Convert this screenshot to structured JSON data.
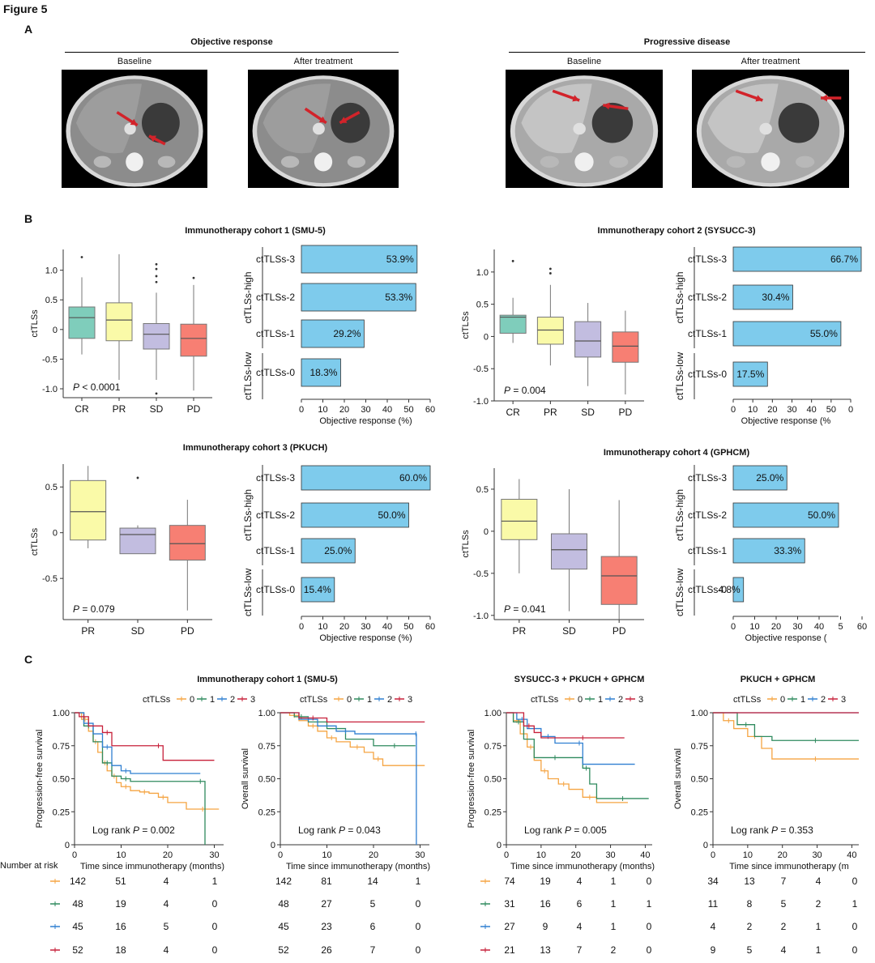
{
  "figure_title": "Figure 5",
  "panel_labels": {
    "a": "A",
    "b": "B",
    "c": "C"
  },
  "panel_a": {
    "groups": [
      {
        "title": "Objective response",
        "images": [
          "Baseline",
          "After treatment"
        ]
      },
      {
        "title": "Progressive disease",
        "images": [
          "Baseline",
          "After treatment"
        ]
      }
    ]
  },
  "boxplot_colors": {
    "CR": "#7fcdbb",
    "PR": "#fafaa8",
    "SD": "#c2bde0",
    "PD": "#f77f73"
  },
  "bar_color": "#7ecbec",
  "chart_data": [
    {
      "type": "box",
      "title": "Immunotherapy cohort 1 (SMU-5)",
      "ylabel": "ctTLSs",
      "categories": [
        "CR",
        "PR",
        "SD",
        "PD"
      ],
      "ylim": [
        -1.15,
        1.35
      ],
      "yticks": [
        "1.0",
        "0.5",
        "0",
        "-0.5",
        "-1.0"
      ],
      "stats": [
        {
          "q1": -0.15,
          "median": 0.2,
          "q3": 0.38,
          "wlo": -0.42,
          "whi": 0.88,
          "outliers": [
            1.22
          ]
        },
        {
          "q1": -0.19,
          "median": 0.16,
          "q3": 0.45,
          "wlo": -0.85,
          "whi": 1.27,
          "outliers": []
        },
        {
          "q1": -0.33,
          "median": -0.08,
          "q3": 0.1,
          "wlo": -0.85,
          "whi": 0.62,
          "outliers": [
            0.8,
            0.9,
            1.02,
            1.1,
            -1.08
          ]
        },
        {
          "q1": -0.45,
          "median": -0.15,
          "q3": 0.09,
          "wlo": -1.03,
          "whi": 0.75,
          "outliers": [
            0.87
          ]
        }
      ],
      "annotation": "P < 0.0001"
    },
    {
      "type": "bar",
      "xlabel": "Objective response (%)",
      "categories": [
        "ctTLSs-3",
        "ctTLSs-2",
        "ctTLSs-1",
        "ctTLSs-0"
      ],
      "values": [
        53.9,
        53.3,
        29.2,
        18.3
      ],
      "value_labels": [
        "53.9%",
        "53.3%",
        "29.2%",
        "18.3%"
      ],
      "groups": [
        "ctTLSs-high",
        "ctTLSs-low"
      ],
      "xlim": [
        0,
        60
      ],
      "xticks": [
        "0",
        "10",
        "20",
        "30",
        "40",
        "50",
        "60"
      ]
    },
    {
      "type": "box",
      "title": "Immunotherapy cohort 2 (SYSUCC-3)",
      "ylabel": "ctTLSs",
      "categories": [
        "CR",
        "PR",
        "SD",
        "PD"
      ],
      "ylim": [
        -1.0,
        1.35
      ],
      "yticks": [
        "1.0",
        "0.5",
        "0",
        "-0.5",
        "-1.0"
      ],
      "stats": [
        {
          "q1": 0.05,
          "median": 0.3,
          "q3": 0.33,
          "wlo": -0.1,
          "whi": 0.6,
          "outliers": [
            1.17
          ]
        },
        {
          "q1": -0.12,
          "median": 0.1,
          "q3": 0.3,
          "wlo": -0.45,
          "whi": 0.8,
          "outliers": [
            1.05,
            0.98
          ]
        },
        {
          "q1": -0.32,
          "median": -0.07,
          "q3": 0.23,
          "wlo": -0.77,
          "whi": 0.52,
          "outliers": []
        },
        {
          "q1": -0.4,
          "median": -0.15,
          "q3": 0.07,
          "wlo": -0.9,
          "whi": 0.4,
          "outliers": []
        }
      ],
      "annotation": "P = 0.004"
    },
    {
      "type": "bar",
      "xlabel": "Objective response (%",
      "categories": [
        "ctTLSs-3",
        "ctTLSs-2",
        "ctTLSs-1",
        "ctTLSs-0"
      ],
      "values": [
        66.7,
        30.4,
        55.0,
        17.5
      ],
      "value_labels": [
        "66.7%",
        "30.4%",
        "55.0%",
        "17.5%"
      ],
      "groups": [
        "ctTLSs-high",
        "ctTLSs-low"
      ],
      "xlim": [
        0,
        60
      ],
      "xticks": [
        "0",
        "10",
        "20",
        "30",
        "40",
        "50",
        "0"
      ]
    },
    {
      "type": "box",
      "title": "Immunotherapy cohort 3 (PKUCH)",
      "ylabel": "ctTLSs",
      "categories": [
        "PR",
        "SD",
        "PD"
      ],
      "ylim": [
        -0.95,
        0.75
      ],
      "yticks": [
        "0.5",
        "0",
        "-0.5"
      ],
      "stats": [
        {
          "q1": -0.08,
          "median": 0.23,
          "q3": 0.57,
          "wlo": -0.17,
          "whi": 0.73,
          "outliers": []
        },
        {
          "q1": -0.23,
          "median": -0.02,
          "q3": 0.05,
          "wlo": -0.23,
          "whi": 0.08,
          "outliers": [
            0.6
          ]
        },
        {
          "q1": -0.3,
          "median": -0.12,
          "q3": 0.08,
          "wlo": -0.85,
          "whi": 0.36,
          "outliers": []
        }
      ],
      "annotation": "P = 0.079"
    },
    {
      "type": "bar",
      "xlabel": "Objective response (%)",
      "categories": [
        "ctTLSs-3",
        "ctTLSs-2",
        "ctTLSs-1",
        "ctTLSs-0"
      ],
      "values": [
        60.0,
        50.0,
        25.0,
        15.4
      ],
      "value_labels": [
        "60.0%",
        "50.0%",
        "25.0%",
        "15.4%"
      ],
      "groups": [
        "ctTLSs-high",
        "ctTLSs-low"
      ],
      "xlim": [
        0,
        60
      ],
      "xticks": [
        "0",
        "10",
        "20",
        "30",
        "40",
        "50",
        "60"
      ]
    },
    {
      "type": "box",
      "title": "Immunotherapy cohort 4 (GPHCM)",
      "ylabel": "ctTLSs",
      "categories": [
        "PR",
        "SD",
        "PD"
      ],
      "ylim": [
        -1.05,
        0.75
      ],
      "yticks": [
        "0.5",
        "0",
        "-0.5",
        "-1.0"
      ],
      "stats": [
        {
          "q1": -0.1,
          "median": 0.12,
          "q3": 0.38,
          "wlo": -0.5,
          "whi": 0.62,
          "outliers": []
        },
        {
          "q1": -0.45,
          "median": -0.22,
          "q3": -0.03,
          "wlo": -0.95,
          "whi": 0.5,
          "outliers": []
        },
        {
          "q1": -0.87,
          "median": -0.53,
          "q3": -0.3,
          "wlo": -1.05,
          "whi": 0.37,
          "outliers": []
        }
      ],
      "annotation": "P = 0.041"
    },
    {
      "type": "bar",
      "xlabel": "Objective response (",
      "categories": [
        "ctTLSs-3",
        "ctTLSs-2",
        "ctTLSs-1",
        "ctTLSs-0"
      ],
      "values": [
        25.0,
        50.0,
        33.3,
        4.8
      ],
      "value_labels": [
        "25.0%",
        "50.0%",
        "33.3%",
        "4.8%"
      ],
      "groups": [
        "ctTLSs-high",
        "ctTLSs-low"
      ],
      "xlim": [
        0,
        60
      ],
      "xticks": [
        "0",
        "10",
        "20",
        "30",
        "40",
        "5",
        "60"
      ]
    },
    {
      "type": "line",
      "title": "Immunotherapy cohort 1 (SMU-5)",
      "legend_title": "ctTLSs",
      "legend_items": [
        "0",
        "1",
        "2",
        "3"
      ],
      "ylabel": "Progression-free survival",
      "xlabel": "Time since immunotherapy (months)",
      "xlim": [
        0,
        32
      ],
      "ylim": [
        0,
        1.0
      ],
      "xticks": [
        "0",
        "10",
        "20",
        "30"
      ],
      "yticks": [
        "1.00",
        "0.75",
        "0.50",
        "0.25",
        "0"
      ],
      "annotation": "Log rank P = 0.002",
      "series": [
        {
          "name": "0",
          "x": [
            0,
            1.5,
            3,
            4,
            5,
            6,
            7,
            8,
            9,
            10,
            12,
            14,
            16,
            18,
            20,
            24,
            31
          ],
          "y": [
            1.0,
            0.95,
            0.86,
            0.78,
            0.7,
            0.62,
            0.56,
            0.52,
            0.47,
            0.44,
            0.41,
            0.4,
            0.39,
            0.36,
            0.32,
            0.27,
            0.27
          ]
        },
        {
          "name": "1",
          "x": [
            0,
            2,
            4,
            6,
            8,
            10,
            12,
            26,
            28
          ],
          "y": [
            1.0,
            0.9,
            0.78,
            0.62,
            0.52,
            0.5,
            0.48,
            0.48,
            0.0
          ]
        },
        {
          "name": "2",
          "x": [
            0,
            2,
            4,
            6,
            8,
            10,
            12,
            27
          ],
          "y": [
            1.0,
            0.92,
            0.84,
            0.74,
            0.6,
            0.56,
            0.54,
            0.54
          ]
        },
        {
          "name": "3",
          "x": [
            0,
            1,
            3,
            6,
            8,
            17,
            19,
            30
          ],
          "y": [
            1.0,
            0.97,
            0.9,
            0.85,
            0.75,
            0.75,
            0.64,
            0.64
          ]
        }
      ]
    },
    {
      "type": "line",
      "legend_title": "ctTLSs",
      "legend_items": [
        "0",
        "1",
        "2",
        "3"
      ],
      "ylabel": "Overall survival",
      "xlabel": "Time since immunotherapy (months)",
      "xlim": [
        0,
        32
      ],
      "ylim": [
        0,
        1.0
      ],
      "xticks": [
        "0",
        "10",
        "20",
        "30"
      ],
      "yticks": [
        "1.00",
        "0.75",
        "0.50",
        "0.25",
        "0"
      ],
      "annotation": "Log rank P = 0.043",
      "series": [
        {
          "name": "0",
          "x": [
            0,
            2,
            4,
            6,
            8,
            10,
            12,
            15,
            18,
            20,
            22,
            31
          ],
          "y": [
            1.0,
            0.98,
            0.94,
            0.9,
            0.86,
            0.81,
            0.78,
            0.74,
            0.7,
            0.65,
            0.6,
            0.6
          ]
        },
        {
          "name": "1",
          "x": [
            0,
            3,
            6,
            10,
            14,
            20,
            29
          ],
          "y": [
            1.0,
            0.97,
            0.93,
            0.88,
            0.8,
            0.75,
            0.75
          ]
        },
        {
          "name": "2",
          "x": [
            0,
            4,
            8,
            12,
            16,
            29,
            29.2
          ],
          "y": [
            1.0,
            0.95,
            0.9,
            0.86,
            0.84,
            0.84,
            0.0
          ]
        },
        {
          "name": "3",
          "x": [
            0,
            4,
            10,
            31
          ],
          "y": [
            1.0,
            0.96,
            0.93,
            0.93
          ]
        }
      ]
    },
    {
      "type": "line",
      "title": "SYSUCC-3 + PKUCH + GPHCM",
      "legend_title": "ctTLSs",
      "legend_items": [
        "0",
        "1",
        "2",
        "3"
      ],
      "ylabel": "Progression-free survival",
      "xlabel": "Time since immunotherapy (months)",
      "xlim": [
        0,
        42
      ],
      "ylim": [
        0,
        1.0
      ],
      "xticks": [
        "0",
        "10",
        "20",
        "30",
        "40"
      ],
      "yticks": [
        "1.00",
        "0.75",
        "0.50",
        "0.25",
        "0"
      ],
      "annotation": "Log rank P = 0.005",
      "series": [
        {
          "name": "0",
          "x": [
            0,
            2,
            4,
            6,
            8,
            10,
            12,
            15,
            18,
            22,
            26,
            35
          ],
          "y": [
            1.0,
            0.94,
            0.84,
            0.74,
            0.64,
            0.56,
            0.5,
            0.46,
            0.42,
            0.36,
            0.32,
            0.32
          ]
        },
        {
          "name": "1",
          "x": [
            0,
            2,
            5,
            8,
            20,
            22,
            24,
            26,
            41
          ],
          "y": [
            1.0,
            0.93,
            0.8,
            0.66,
            0.66,
            0.58,
            0.46,
            0.35,
            0.35
          ]
        },
        {
          "name": "2",
          "x": [
            0,
            3,
            6,
            10,
            14,
            20,
            22,
            37
          ],
          "y": [
            1.0,
            0.95,
            0.88,
            0.82,
            0.77,
            0.77,
            0.61,
            0.61
          ]
        },
        {
          "name": "3",
          "x": [
            0,
            5,
            8,
            10,
            34
          ],
          "y": [
            1.0,
            0.9,
            0.85,
            0.81,
            0.81
          ]
        }
      ]
    },
    {
      "type": "line",
      "title": "PKUCH + GPHCM",
      "legend_title": "ctTLSs",
      "legend_items": [
        "0",
        "1",
        "2",
        "3"
      ],
      "ylabel": "Overall survival",
      "xlabel": "Time since immunotherapy (m",
      "xlim": [
        0,
        42
      ],
      "ylim": [
        0,
        1.0
      ],
      "xticks": [
        "0",
        "10",
        "20",
        "30",
        "40"
      ],
      "yticks": [
        "1.00",
        "0.75",
        "0.50",
        "0.25",
        "0"
      ],
      "annotation": "Log rank P = 0.353",
      "series": [
        {
          "name": "0",
          "x": [
            0,
            3,
            6,
            10,
            14,
            17,
            42
          ],
          "y": [
            1.0,
            0.94,
            0.88,
            0.82,
            0.73,
            0.65,
            0.65
          ]
        },
        {
          "name": "1",
          "x": [
            0,
            7,
            12,
            17,
            42
          ],
          "y": [
            1.0,
            0.91,
            0.82,
            0.79,
            0.79
          ]
        },
        {
          "name": "2",
          "x": [
            0,
            42
          ],
          "y": [
            1.0,
            1.0
          ]
        },
        {
          "name": "3",
          "x": [
            0,
            42
          ],
          "y": [
            1.0,
            1.0
          ]
        }
      ]
    }
  ],
  "km_colors": [
    "#f5a442",
    "#2f8a5e",
    "#2f7fd1",
    "#c7203a"
  ],
  "risk_table": {
    "title": "Number at risk",
    "blocks": [
      {
        "rows": [
          [
            "142",
            "51",
            "4",
            "1"
          ],
          [
            "48",
            "19",
            "4",
            "0"
          ],
          [
            "45",
            "16",
            "5",
            "0"
          ],
          [
            "52",
            "18",
            "4",
            "0"
          ]
        ]
      },
      {
        "rows": [
          [
            "142",
            "81",
            "14",
            "1"
          ],
          [
            "48",
            "27",
            "5",
            "0"
          ],
          [
            "45",
            "23",
            "6",
            "0"
          ],
          [
            "52",
            "26",
            "7",
            "0"
          ]
        ]
      },
      {
        "rows": [
          [
            "74",
            "19",
            "4",
            "1",
            "0"
          ],
          [
            "31",
            "16",
            "6",
            "1",
            "1"
          ],
          [
            "27",
            "9",
            "4",
            "1",
            "0"
          ],
          [
            "21",
            "13",
            "7",
            "2",
            "0"
          ]
        ]
      },
      {
        "rows": [
          [
            "34",
            "13",
            "7",
            "4",
            "0"
          ],
          [
            "11",
            "8",
            "5",
            "2",
            "1"
          ],
          [
            "4",
            "2",
            "2",
            "1",
            "0"
          ],
          [
            "9",
            "5",
            "4",
            "1",
            "0"
          ]
        ]
      }
    ]
  }
}
